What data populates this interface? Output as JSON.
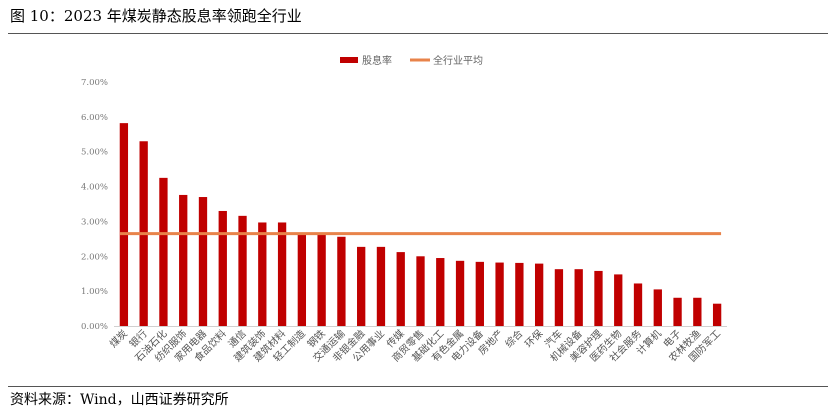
{
  "header": {
    "title": "图 10：2023 年煤炭静态股息率领跑全行业"
  },
  "footer": {
    "source": "资料来源：Wind，山西证券研究所"
  },
  "chart_data": {
    "type": "bar",
    "categories": [
      "煤炭",
      "银行",
      "石油石化",
      "纺织服饰",
      "家用电器",
      "食品饮料",
      "通信",
      "建筑装饰",
      "建筑材料",
      "轻工制造",
      "钢铁",
      "交通运输",
      "非银金融",
      "公用事业",
      "传媒",
      "商贸零售",
      "基础化工",
      "有色金属",
      "电力设备",
      "房地产",
      "综合",
      "环保",
      "汽车",
      "机械设备",
      "美容护理",
      "医药生物",
      "社会服务",
      "计算机",
      "电子",
      "农林牧渔",
      "国防军工"
    ],
    "series": [
      {
        "name": "股息率",
        "type": "bar",
        "color": "#c00000",
        "values": [
          5.82,
          5.3,
          4.25,
          3.76,
          3.7,
          3.3,
          3.16,
          2.97,
          2.97,
          2.63,
          2.62,
          2.56,
          2.27,
          2.27,
          2.12,
          2.0,
          1.95,
          1.87,
          1.84,
          1.82,
          1.81,
          1.79,
          1.63,
          1.63,
          1.58,
          1.48,
          1.22,
          1.05,
          0.81,
          0.81,
          0.64
        ]
      },
      {
        "name": "全行业平均",
        "type": "line",
        "color": "#e8834a",
        "value": 2.65
      }
    ],
    "y_ticks": [
      "0.00%",
      "1.00%",
      "2.00%",
      "3.00%",
      "4.00%",
      "5.00%",
      "6.00%",
      "7.00%"
    ],
    "ylim": [
      0,
      7
    ],
    "title": "",
    "xlabel": "",
    "ylabel": "",
    "grid": false,
    "legend_position": "top-center"
  }
}
